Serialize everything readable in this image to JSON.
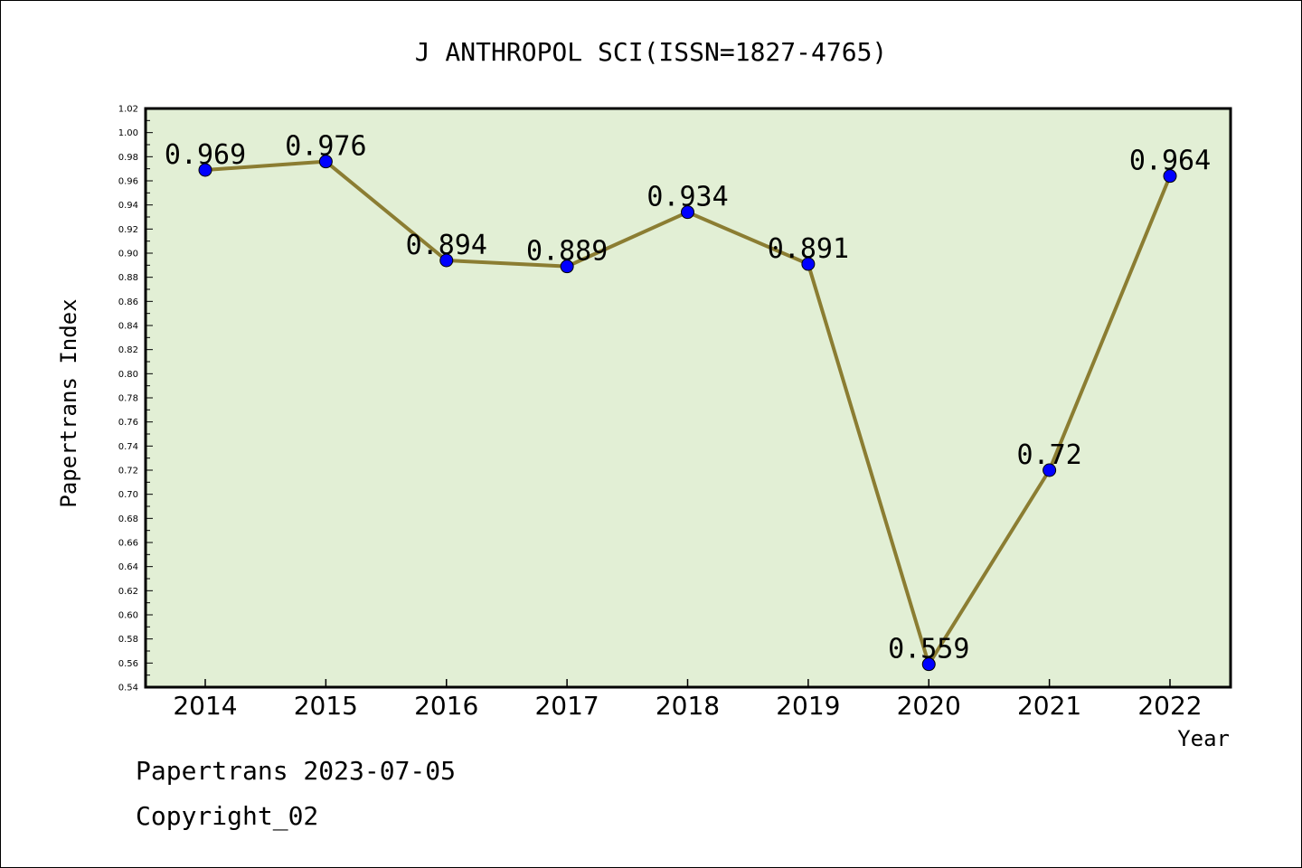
{
  "chart_data": {
    "type": "line",
    "title": "J ANTHROPOL SCI(ISSN=1827-4765)",
    "xlabel": "Year",
    "ylabel": "Papertrans Index",
    "categories": [
      "2014",
      "2015",
      "2016",
      "2017",
      "2018",
      "2019",
      "2020",
      "2021",
      "2022"
    ],
    "series": [
      {
        "values": [
          0.969,
          0.976,
          0.894,
          0.889,
          0.934,
          0.891,
          0.559,
          0.72,
          0.964
        ],
        "labels": [
          "0.969",
          "0.976",
          "0.894",
          "0.889",
          "0.934",
          "0.891",
          "0.559",
          "0.72",
          "0.964"
        ]
      }
    ],
    "ylim": [
      0.54,
      1.02
    ],
    "ytick_step": 0.02,
    "grid": false,
    "colors": {
      "plot_background": "#e2efd5",
      "line": "#8b7d32",
      "marker": "#0000ff"
    }
  },
  "footer": {
    "line1": "Papertrans 2023-07-05",
    "line2": "Copyright_02"
  }
}
